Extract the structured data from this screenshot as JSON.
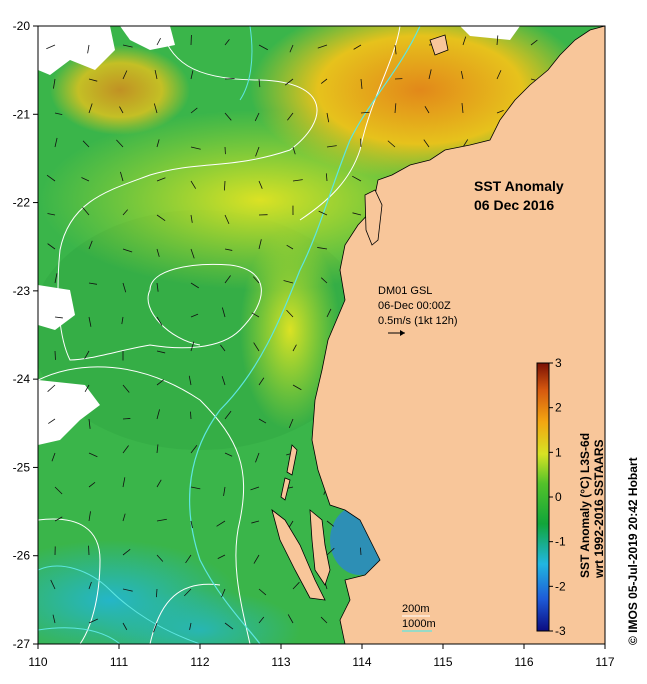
{
  "title": {
    "line1": "SST Anomaly",
    "line2": "06 Dec 2016"
  },
  "current_box": {
    "line1": "DM01 GSL",
    "line2": "06-Dec 00:00Z",
    "line3": "0.5m/s (1kt 12h)"
  },
  "depth_legend": {
    "contour_200": "200m",
    "contour_1000": "1000m"
  },
  "colorbar": {
    "label_line1": "SST Anomaly (°C) L3S-6d",
    "label_line2": "wrt 1992-2016 SSTAARS",
    "ticks": [
      "3",
      "2",
      "1",
      "0",
      "-1",
      "-2",
      "-3"
    ],
    "min": -3,
    "max": 3,
    "colors": [
      "#0b0b80",
      "#1e5bd8",
      "#21b6e0",
      "#11a53a",
      "#53c22a",
      "#d7e224",
      "#f3a611",
      "#d5580f",
      "#7a1004"
    ]
  },
  "credit": "© IMOS 05-Jul-2019 20:42 Hobart",
  "x_ticks": [
    "110",
    "111",
    "112",
    "113",
    "114",
    "115",
    "116",
    "117"
  ],
  "y_ticks": [
    "-20",
    "-21",
    "-22",
    "-23",
    "-24",
    "-25",
    "-26",
    "-27"
  ],
  "colors": {
    "land": "#f8c69a",
    "ocean_base": "#3ab54a",
    "contour_200": "#ffffff",
    "contour_1000": "#5ee6e0"
  }
}
